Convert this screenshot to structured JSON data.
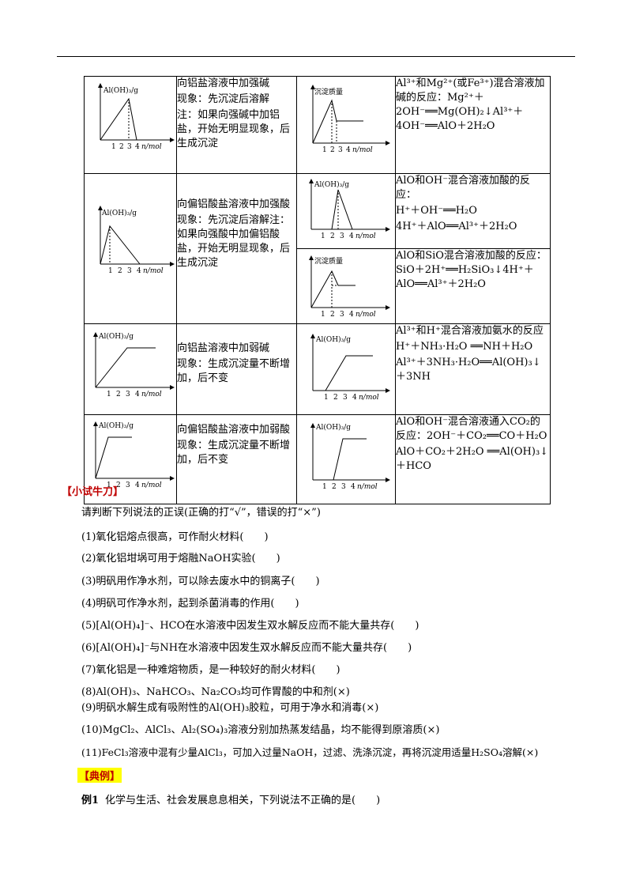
{
  "table": {
    "rows": [
      {
        "desc": [
          "向铝盐溶液中加强碱",
          "现象：先沉淀后溶解",
          "注：如果向强碱中加铝盐，开始无明显现象，后生成沉淀"
        ],
        "react": [
          "Al³⁺和Mg²⁺(或Fe³⁺)混合溶液加碱的反应：Mg²⁺＋2OH⁻══Mg(OH)₂↓Al³⁺＋4OH⁻══AlO＋2H₂O"
        ]
      },
      {
        "desc": [
          "向偏铝酸盐溶液中加强酸",
          "现象：先沉淀后溶解注：如果向强酸中加偏铝酸盐，开始无明显现象，后生成沉淀"
        ],
        "react_a": [
          "AlO和OH⁻混合溶液加酸的反应：",
          "H⁺＋OH⁻══H₂O",
          "4H⁺＋AlO══Al³⁺＋2H₂O"
        ],
        "react_b": [
          "AlO和SiO混合溶液加酸的反应：SiO＋2H⁺══H₂SiO₃↓4H⁺＋AlO══Al³⁺＋2H₂O"
        ]
      },
      {
        "desc": [
          "向铝盐溶液中加弱碱",
          "现象：生成沉淀量不断增加，后不变"
        ],
        "react": [
          "Al³⁺和H⁺混合溶液加氨水的反应",
          "H⁺＋NH₃·H₂O ══NH＋H₂O",
          "Al³⁺＋3NH₃·H₂O══Al(OH)₃↓＋3NH"
        ]
      },
      {
        "desc": [
          "向偏铝酸盐溶液中加弱酸",
          "现象：生成沉淀量不断增加，后不变"
        ],
        "react": [
          "AlO和OH⁻混合溶液通入CO₂的反应：2OH⁻＋CO₂══CO＋H₂O",
          "AlO＋CO₂＋2H₂O ══Al(OH)₃↓＋HCO"
        ]
      }
    ],
    "graph_labels": {
      "y_al": "Al(OH)₃/g",
      "y_cd": "沉淀质量",
      "x_unit": "n/mol",
      "ticks": [
        "1",
        "2",
        "3",
        "4"
      ]
    }
  },
  "section1": {
    "title": "【小试牛刀】",
    "intro": "请判断下列说法的正误(正确的打“√”，错误的打“×”)",
    "items": [
      "(1)氧化铝熔点很高，可作耐火材料(　　)",
      "(2)氧化铝坩埚可用于熔融NaOH实验(　　)",
      "(3)明矾用作净水剂，可以除去废水中的铜离子(　　)",
      "(4)明矾可作净水剂，起到杀菌消毒的作用(　　)",
      "(5)[Al(OH)₄]⁻、HCO在水溶液中因发生双水解反应而不能大量共存(　　)",
      "(6)[Al(OH)₄]⁻与NH在水溶液中因发生双水解反应而不能大量共存(　　)",
      "(7)氧化铝是一种难熔物质，是一种较好的耐火材料(　　)",
      " (8)Al(OH)₃、NaHCO₃、Na₂CO₃均可作胃酸的中和剂(×)",
      "(9)明矾水解生成有吸附性的Al(OH)₃胶粒，可用于净水和消毒(×)",
      "(10)MgCl₂、AlCl₃、Al₂(SO₄)₃溶液分别加热蒸发结晶，均不能得到原溶质(×)",
      "(11)FeCl₃溶液中混有少量AlCl₃，可加入过量NaOH，过滤、洗涤沉淀，再将沉淀用适量H₂SO₄溶解(×)"
    ]
  },
  "section2": {
    "title": "【典例】",
    "example_label": "例1",
    "example_text": "化学与生活、社会发展息息相关，下列说法不正确的是(　　)"
  }
}
